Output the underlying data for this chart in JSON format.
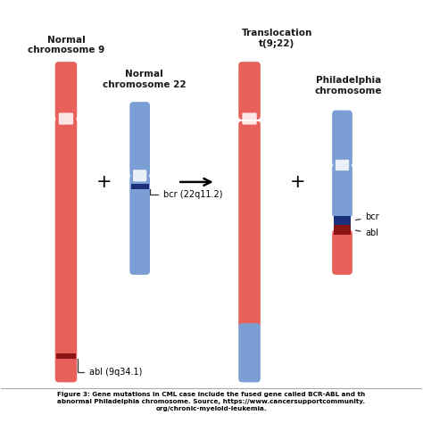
{
  "background_color": "#ffffff",
  "red_color": "#E8605A",
  "blue_color": "#7B9FD4",
  "dark_red_color": "#8B1515",
  "dark_blue_color": "#1C2F7A",
  "text_color": "#1a1a1a",
  "title1": "Normal\nchromosome 9",
  "title2": "Normal\nchromosome 22",
  "title3": "Translocation\nt(9;22)",
  "title4": "Philadelphia\nchromosome",
  "label_bcr": "bcr (22q11.2)",
  "label_abl": "abl (9q34.1)",
  "label_bcr_short": "bcr",
  "label_abl_short": "abl",
  "caption_line1": "Figure 3: Gene mutations in CML case include the fused gene called BCR-ABL and th",
  "caption_line2": "abnormal Philadelphia chromosome. Source, https://www.cancersupportcommunity.",
  "caption_line3": "org/chronic-myeloid-leukemia."
}
